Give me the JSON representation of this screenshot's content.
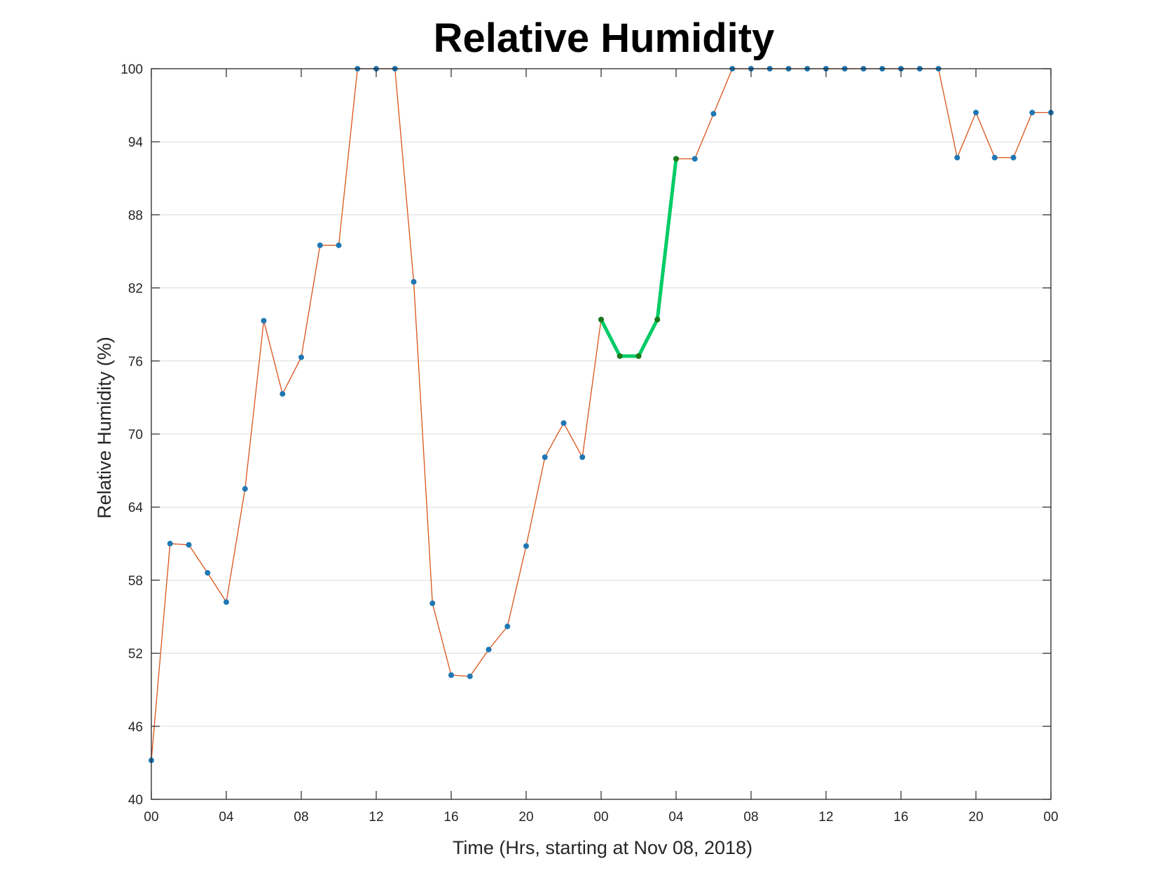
{
  "chart_data": {
    "type": "line",
    "title": "Relative Humidity",
    "xlabel": "Time (Hrs, starting at Nov 08, 2018)",
    "ylabel": "Relative Humidity (%)",
    "ylim": [
      40,
      100
    ],
    "xlim": [
      0,
      48
    ],
    "grid": "y-major",
    "x_ticks": [
      {
        "x": 0,
        "label": "00"
      },
      {
        "x": 4,
        "label": "04"
      },
      {
        "x": 8,
        "label": "08"
      },
      {
        "x": 12,
        "label": "12"
      },
      {
        "x": 16,
        "label": "16"
      },
      {
        "x": 20,
        "label": "20"
      },
      {
        "x": 24,
        "label": "00"
      },
      {
        "x": 28,
        "label": "04"
      },
      {
        "x": 32,
        "label": "08"
      },
      {
        "x": 36,
        "label": "12"
      },
      {
        "x": 40,
        "label": "16"
      },
      {
        "x": 44,
        "label": "20"
      },
      {
        "x": 48,
        "label": "00"
      }
    ],
    "y_ticks": [
      40,
      46,
      52,
      58,
      64,
      70,
      76,
      82,
      88,
      94,
      100
    ],
    "series": [
      {
        "color": "#D95319",
        "marker_color": "#1F77B4",
        "x": [
          0,
          1,
          2,
          3,
          4,
          5,
          6,
          7,
          8,
          9,
          10,
          11,
          12,
          13,
          14,
          15,
          16,
          17,
          18,
          19,
          20,
          21,
          22,
          23,
          24,
          25,
          26,
          27,
          28,
          29,
          30,
          31,
          32,
          33,
          34,
          35,
          36,
          37,
          38,
          39,
          40,
          41,
          42,
          43,
          44,
          45,
          46,
          47,
          48
        ],
        "values": [
          43.2,
          61.0,
          60.9,
          58.6,
          56.2,
          65.5,
          79.3,
          73.3,
          76.3,
          85.5,
          85.5,
          100,
          100,
          100,
          82.5,
          56.1,
          50.2,
          50.1,
          52.3,
          54.2,
          60.8,
          68.1,
          70.9,
          68.1,
          79.4,
          76.4,
          76.4,
          79.4,
          92.6,
          92.6,
          96.3,
          100,
          100,
          100,
          100,
          100,
          100,
          100,
          100,
          100,
          100,
          100,
          100,
          92.7,
          96.4,
          92.7,
          92.7,
          96.4,
          96.4
        ]
      },
      {
        "color": "#00CC66",
        "marker_color": "#1A7A1A",
        "x": [
          24,
          25,
          26,
          27,
          28
        ],
        "values": [
          79.4,
          76.4,
          76.4,
          79.4,
          92.6
        ]
      }
    ]
  }
}
